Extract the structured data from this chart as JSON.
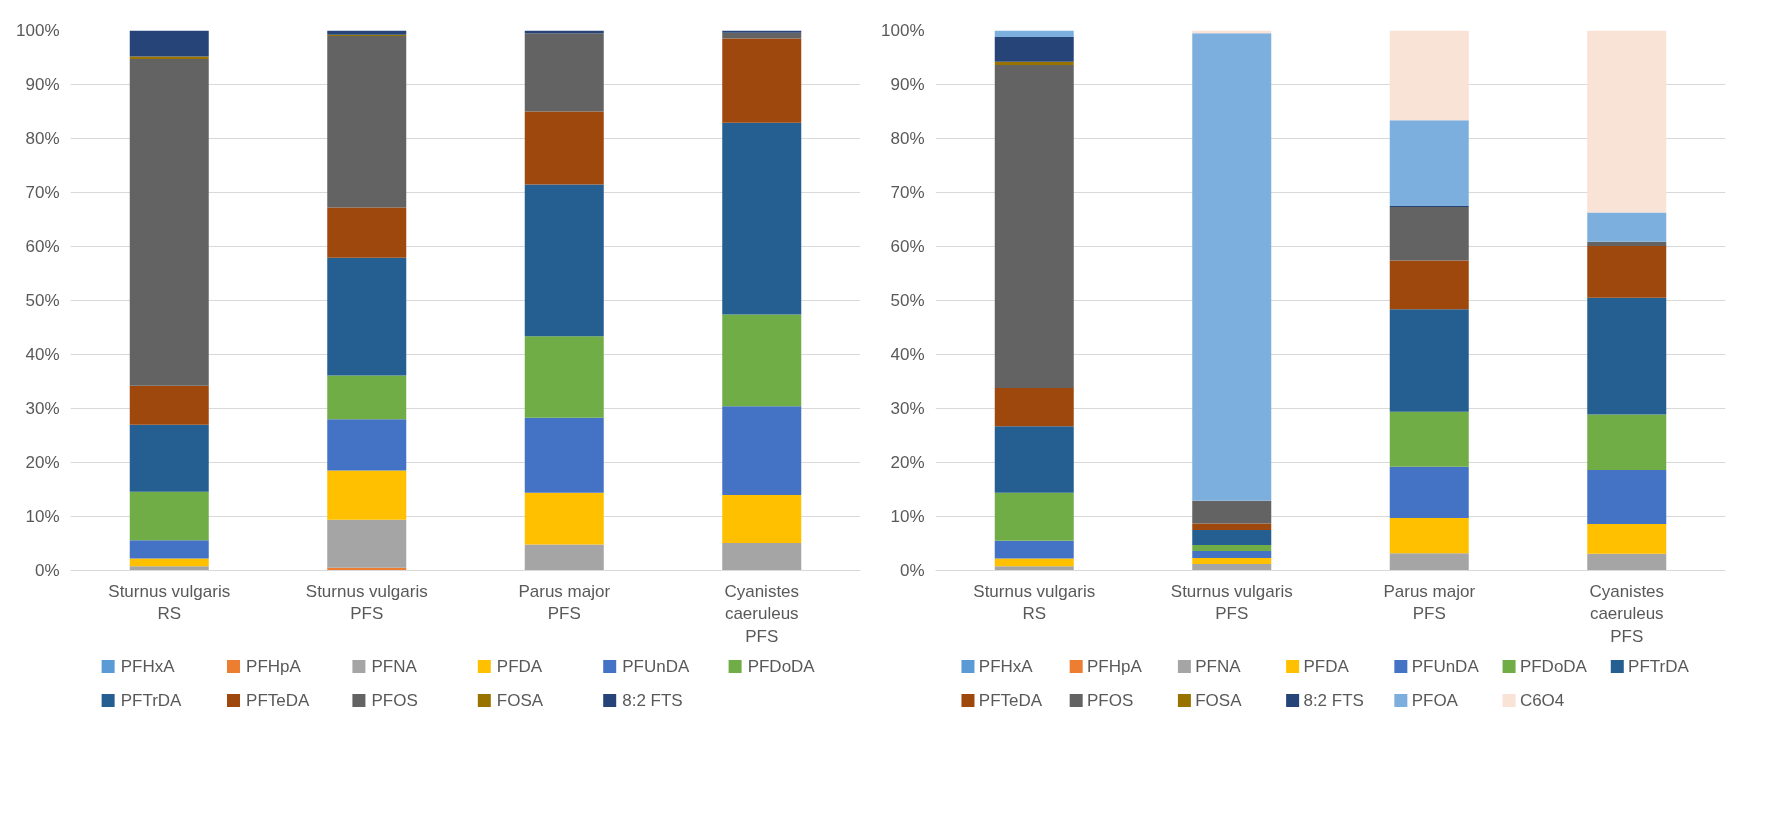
{
  "chart_data": [
    {
      "type": "bar",
      "stacked": true,
      "categories": [
        "Sturnus vulgaris\nRS",
        "Sturnus vulgaris\nPFS",
        "Parus major\nPFS",
        "Cyanistes\ncaeruleus\nPFS"
      ],
      "ylim": [
        0,
        100
      ],
      "yticks": [
        {
          "value": 0,
          "label": "0%"
        },
        {
          "value": 10,
          "label": "10%"
        },
        {
          "value": 20,
          "label": "20%"
        },
        {
          "value": 30,
          "label": "30%"
        },
        {
          "value": 40,
          "label": "40%"
        },
        {
          "value": 50,
          "label": "50%"
        },
        {
          "value": 60,
          "label": "60%"
        },
        {
          "value": 70,
          "label": "70%"
        },
        {
          "value": 80,
          "label": "80%"
        },
        {
          "value": 90,
          "label": "90%"
        },
        {
          "value": 100,
          "label": "100%"
        }
      ],
      "grid": "y",
      "legend": "bottom",
      "series": [
        {
          "name": "PFHxA",
          "color": "#5b9bd5",
          "values": [
            0,
            0,
            0,
            0
          ]
        },
        {
          "name": "PFHpA",
          "color": "#ed7d31",
          "values": [
            0,
            0.5,
            0,
            0
          ]
        },
        {
          "name": "PFNA",
          "color": "#a5a5a5",
          "values": [
            0.8,
            8.9,
            4.8,
            5.1
          ]
        },
        {
          "name": "PFDA",
          "color": "#ffc000",
          "values": [
            1.4,
            9.1,
            9.6,
            8.9
          ]
        },
        {
          "name": "PFUnDA",
          "color": "#4472c4",
          "values": [
            3.4,
            9.5,
            13.9,
            16.4
          ]
        },
        {
          "name": "PFDoDA",
          "color": "#70ad47",
          "values": [
            9.0,
            8.1,
            15.1,
            17.0
          ]
        },
        {
          "name": "PFTrDA",
          "color": "#255e91",
          "values": [
            12.4,
            21.8,
            28.1,
            35.5
          ]
        },
        {
          "name": "PFTeDA",
          "color": "#9e480e",
          "values": [
            7.2,
            9.3,
            13.5,
            15.6
          ]
        },
        {
          "name": "PFOS",
          "color": "#636363",
          "values": [
            60.5,
            31.8,
            14.5,
            1.1
          ]
        },
        {
          "name": "FOSA",
          "color": "#997300",
          "values": [
            0.5,
            0.2,
            0,
            0
          ]
        },
        {
          "name": "8:2 FTS",
          "color": "#264478",
          "values": [
            4.8,
            0.8,
            0.5,
            0.4
          ]
        }
      ]
    },
    {
      "type": "bar",
      "stacked": true,
      "categories": [
        "Sturnus vulgaris\nRS",
        "Sturnus vulgaris\nPFS",
        "Parus major\nPFS",
        "Cyanistes\ncaeruleus\nPFS"
      ],
      "ylim": [
        0,
        100
      ],
      "yticks": [
        {
          "value": 0,
          "label": "0%"
        },
        {
          "value": 10,
          "label": "10%"
        },
        {
          "value": 20,
          "label": "20%"
        },
        {
          "value": 30,
          "label": "30%"
        },
        {
          "value": 40,
          "label": "40%"
        },
        {
          "value": 50,
          "label": "50%"
        },
        {
          "value": 60,
          "label": "60%"
        },
        {
          "value": 70,
          "label": "70%"
        },
        {
          "value": 80,
          "label": "80%"
        },
        {
          "value": 90,
          "label": "90%"
        },
        {
          "value": 100,
          "label": "100%"
        }
      ],
      "grid": "y",
      "legend": "bottom",
      "series": [
        {
          "name": "PFHxA",
          "color": "#5b9bd5",
          "values": [
            0,
            0,
            0,
            0
          ]
        },
        {
          "name": "PFHpA",
          "color": "#ed7d31",
          "values": [
            0,
            0,
            0,
            0
          ]
        },
        {
          "name": "PFNA",
          "color": "#a5a5a5",
          "values": [
            0.8,
            1.2,
            3.2,
            3.1
          ]
        },
        {
          "name": "PFDA",
          "color": "#ffc000",
          "values": [
            1.4,
            1.1,
            6.5,
            5.5
          ]
        },
        {
          "name": "PFUnDA",
          "color": "#4472c4",
          "values": [
            3.3,
            1.3,
            9.5,
            10.0
          ]
        },
        {
          "name": "PFDoDA",
          "color": "#70ad47",
          "values": [
            8.9,
            1.1,
            10.2,
            10.3
          ]
        },
        {
          "name": "PFTrDA",
          "color": "#255e91",
          "values": [
            12.3,
            2.8,
            19.0,
            21.6
          ]
        },
        {
          "name": "PFTeDA",
          "color": "#9e480e",
          "values": [
            7.1,
            1.2,
            9.0,
            9.6
          ]
        },
        {
          "name": "PFOS",
          "color": "#636363",
          "values": [
            59.8,
            4.2,
            9.9,
            0.8
          ]
        },
        {
          "name": "FOSA",
          "color": "#997300",
          "values": [
            0.6,
            0,
            0,
            0
          ]
        },
        {
          "name": "8:2 FTS",
          "color": "#264478",
          "values": [
            4.6,
            0,
            0.2,
            0
          ]
        },
        {
          "name": "PFOA",
          "color": "#7cafdd",
          "values": [
            1.2,
            86.6,
            15.9,
            5.4
          ]
        },
        {
          "name": "C6O4",
          "color": "#f9e2d6",
          "values": [
            0,
            0.5,
            16.6,
            33.7
          ]
        }
      ]
    }
  ]
}
